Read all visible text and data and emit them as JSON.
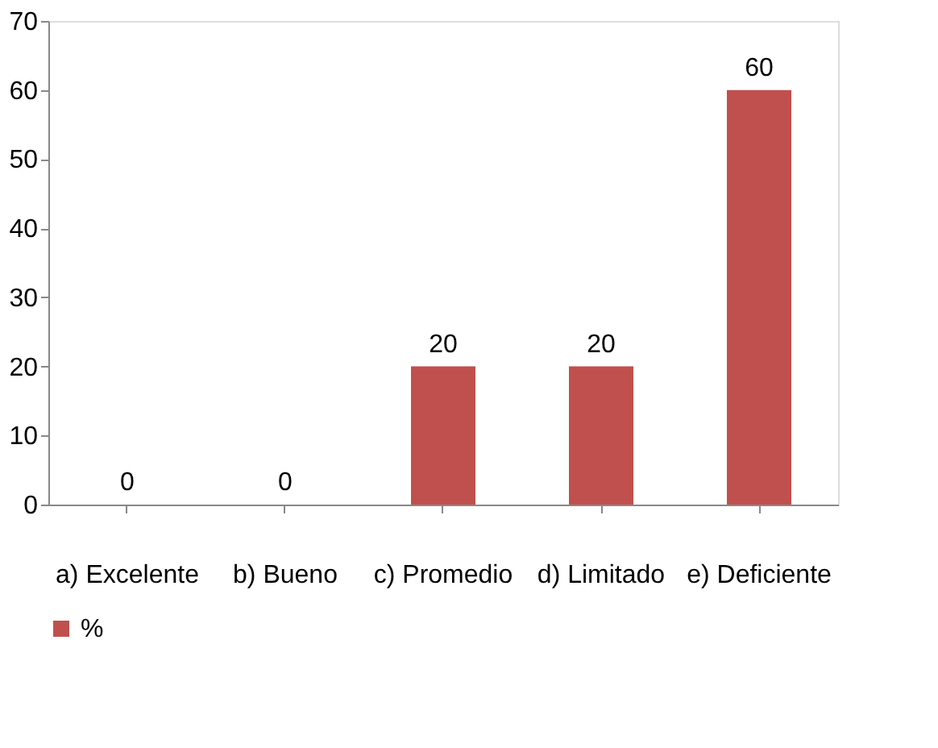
{
  "chart_data": {
    "type": "bar",
    "categories": [
      "a) Excelente",
      "b) Bueno",
      "c) Promedio",
      "d) Limitado",
      "e) Deficiente"
    ],
    "series": [
      {
        "name": "%",
        "color": "#c0504d",
        "values": [
          0,
          0,
          20,
          20,
          60
        ]
      }
    ],
    "ylim": [
      0,
      70
    ],
    "yticks": [
      0,
      10,
      20,
      30,
      40,
      50,
      60,
      70
    ],
    "grid": false,
    "legend": "bottom",
    "data_labels": true
  }
}
